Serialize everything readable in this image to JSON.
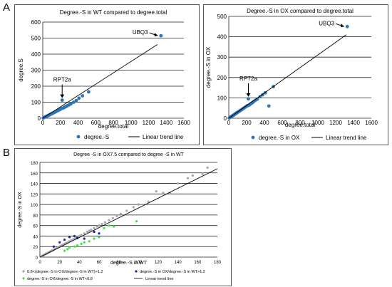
{
  "figure": {
    "panel_labels": [
      "A",
      "B"
    ]
  },
  "chart_data": [
    {
      "type": "scatter",
      "title": "Degree.-S in WT compared to degree.total",
      "xlabel": "degree.total",
      "ylabel": "degree.S",
      "xlim": [
        0,
        1600
      ],
      "ylim": [
        0,
        600
      ],
      "xticks": [
        0,
        200,
        400,
        600,
        800,
        1000,
        1200,
        1400,
        1600
      ],
      "yticks": [
        0,
        100,
        200,
        300,
        400,
        500,
        600
      ],
      "grid": "horizontal",
      "legend_position": "bottom",
      "series": [
        {
          "name": "degree.-S",
          "color": "#2e75b6",
          "x": [
            5,
            10,
            15,
            20,
            25,
            30,
            35,
            40,
            45,
            50,
            55,
            60,
            65,
            70,
            75,
            80,
            85,
            90,
            95,
            100,
            110,
            120,
            130,
            140,
            150,
            160,
            170,
            180,
            190,
            200,
            210,
            220,
            230,
            240,
            250,
            260,
            270,
            280,
            300,
            320,
            350,
            380,
            410,
            450,
            520,
            1340
          ],
          "y": [
            1,
            3,
            4,
            6,
            7,
            8,
            10,
            11,
            12,
            14,
            15,
            16,
            18,
            19,
            20,
            22,
            24,
            25,
            26,
            28,
            30,
            33,
            36,
            39,
            42,
            45,
            48,
            50,
            53,
            56,
            60,
            113,
            63,
            66,
            70,
            72,
            75,
            78,
            84,
            90,
            100,
            110,
            125,
            140,
            165,
            515
          ]
        },
        {
          "name": "Linear trend line",
          "type": "line",
          "color": "#000000",
          "x": [
            0,
            1300
          ],
          "y": [
            0,
            460
          ]
        }
      ],
      "annotations": [
        {
          "text": "UBQ3",
          "x": 1340,
          "y": 515
        },
        {
          "text": "RPT2a",
          "x": 220,
          "y": 113
        }
      ]
    },
    {
      "type": "scatter",
      "title": "Degree.-S in OX compared to degree.total",
      "xlabel": "degree.total",
      "ylabel": "degree.-S in OX",
      "xlim": [
        0,
        1600
      ],
      "ylim": [
        0,
        500
      ],
      "xticks": [
        0,
        200,
        400,
        600,
        800,
        1000,
        1200,
        1400,
        1600
      ],
      "yticks": [
        0,
        100,
        200,
        300,
        400,
        500
      ],
      "grid": "horizontal",
      "legend_position": "bottom",
      "series": [
        {
          "name": "degree.-S in OX",
          "color": "#2e75b6",
          "x": [
            5,
            10,
            15,
            20,
            25,
            30,
            35,
            40,
            45,
            50,
            55,
            60,
            65,
            70,
            75,
            80,
            85,
            90,
            95,
            100,
            110,
            120,
            130,
            140,
            150,
            160,
            170,
            180,
            190,
            200,
            210,
            220,
            230,
            240,
            250,
            260,
            270,
            280,
            300,
            320,
            350,
            380,
            410,
            450,
            500,
            1330
          ],
          "y": [
            1,
            3,
            4,
            6,
            7,
            8,
            10,
            11,
            13,
            14,
            16,
            17,
            19,
            20,
            22,
            23,
            25,
            26,
            28,
            29,
            32,
            35,
            38,
            41,
            44,
            47,
            50,
            53,
            56,
            59,
            62,
            95,
            65,
            69,
            72,
            75,
            78,
            82,
            88,
            94,
            105,
            115,
            125,
            60,
            155,
            450
          ]
        },
        {
          "name": "Linear trend line",
          "type": "line",
          "color": "#000000",
          "x": [
            0,
            1320
          ],
          "y": [
            0,
            410
          ]
        }
      ],
      "annotations": [
        {
          "text": "UBQ3",
          "x": 1330,
          "y": 450
        },
        {
          "text": "RPT2a",
          "x": 220,
          "y": 95
        }
      ]
    },
    {
      "type": "scatter",
      "title": "Degree -S in OX7.5 compared to degree -S in WT",
      "xlabel": "degree.-S in WT",
      "ylabel": "degree.-S in OX",
      "xlim": [
        0,
        180
      ],
      "ylim": [
        0,
        180
      ],
      "xticks": [
        0,
        20,
        40,
        60,
        80,
        100,
        120,
        140,
        160,
        180
      ],
      "yticks": [
        0,
        20,
        40,
        60,
        80,
        100,
        120,
        140,
        160,
        180
      ],
      "grid": "horizontal",
      "legend_position": "bottom",
      "series": [
        {
          "name": "0.8<(degree.-S in OX/degree.-S in WT)>1.2",
          "color": "#a6a6a6",
          "x": [
            2,
            3,
            4,
            5,
            6,
            7,
            8,
            9,
            10,
            11,
            12,
            13,
            14,
            15,
            16,
            17,
            18,
            19,
            20,
            21,
            22,
            23,
            24,
            25,
            26,
            27,
            28,
            30,
            32,
            34,
            36,
            38,
            40,
            42,
            45,
            48,
            50,
            52,
            55,
            58,
            60,
            63,
            66,
            70,
            74,
            78,
            82,
            88,
            95,
            100,
            110,
            118,
            125,
            132,
            140,
            150,
            155,
            165,
            170
          ],
          "y": [
            2,
            3,
            4,
            5,
            6,
            7,
            8,
            9,
            10,
            11,
            12,
            13,
            14,
            15,
            16,
            17,
            18,
            19,
            20,
            21,
            22,
            23,
            24,
            25,
            26,
            27,
            28,
            30,
            32,
            34,
            36,
            38,
            40,
            42,
            45,
            48,
            50,
            52,
            55,
            58,
            60,
            63,
            66,
            70,
            74,
            78,
            82,
            88,
            95,
            100,
            105,
            125,
            122,
            122,
            140,
            150,
            155,
            158,
            170
          ]
        },
        {
          "name": "degree.-S in OX/degree.-S in WT>1.2",
          "color": "#1f1fa8",
          "x": [
            14,
            20,
            25,
            30,
            35,
            38,
            45,
            55,
            60
          ],
          "y": [
            20,
            28,
            33,
            38,
            40,
            36,
            35,
            48,
            45
          ]
        },
        {
          "name": "degree.-S in OX/degree.-S in WT<0.8",
          "color": "#3ce83c",
          "x": [
            25,
            28,
            30,
            35,
            38,
            42,
            45,
            50,
            55,
            60,
            65,
            70,
            75,
            98
          ],
          "y": [
            12,
            15,
            18,
            20,
            22,
            25,
            28,
            30,
            35,
            38,
            55,
            60,
            58,
            68
          ]
        },
        {
          "name": "Linear trend line",
          "type": "line",
          "color": "#000000",
          "x": [
            0,
            180
          ],
          "y": [
            0,
            168
          ]
        }
      ]
    }
  ]
}
